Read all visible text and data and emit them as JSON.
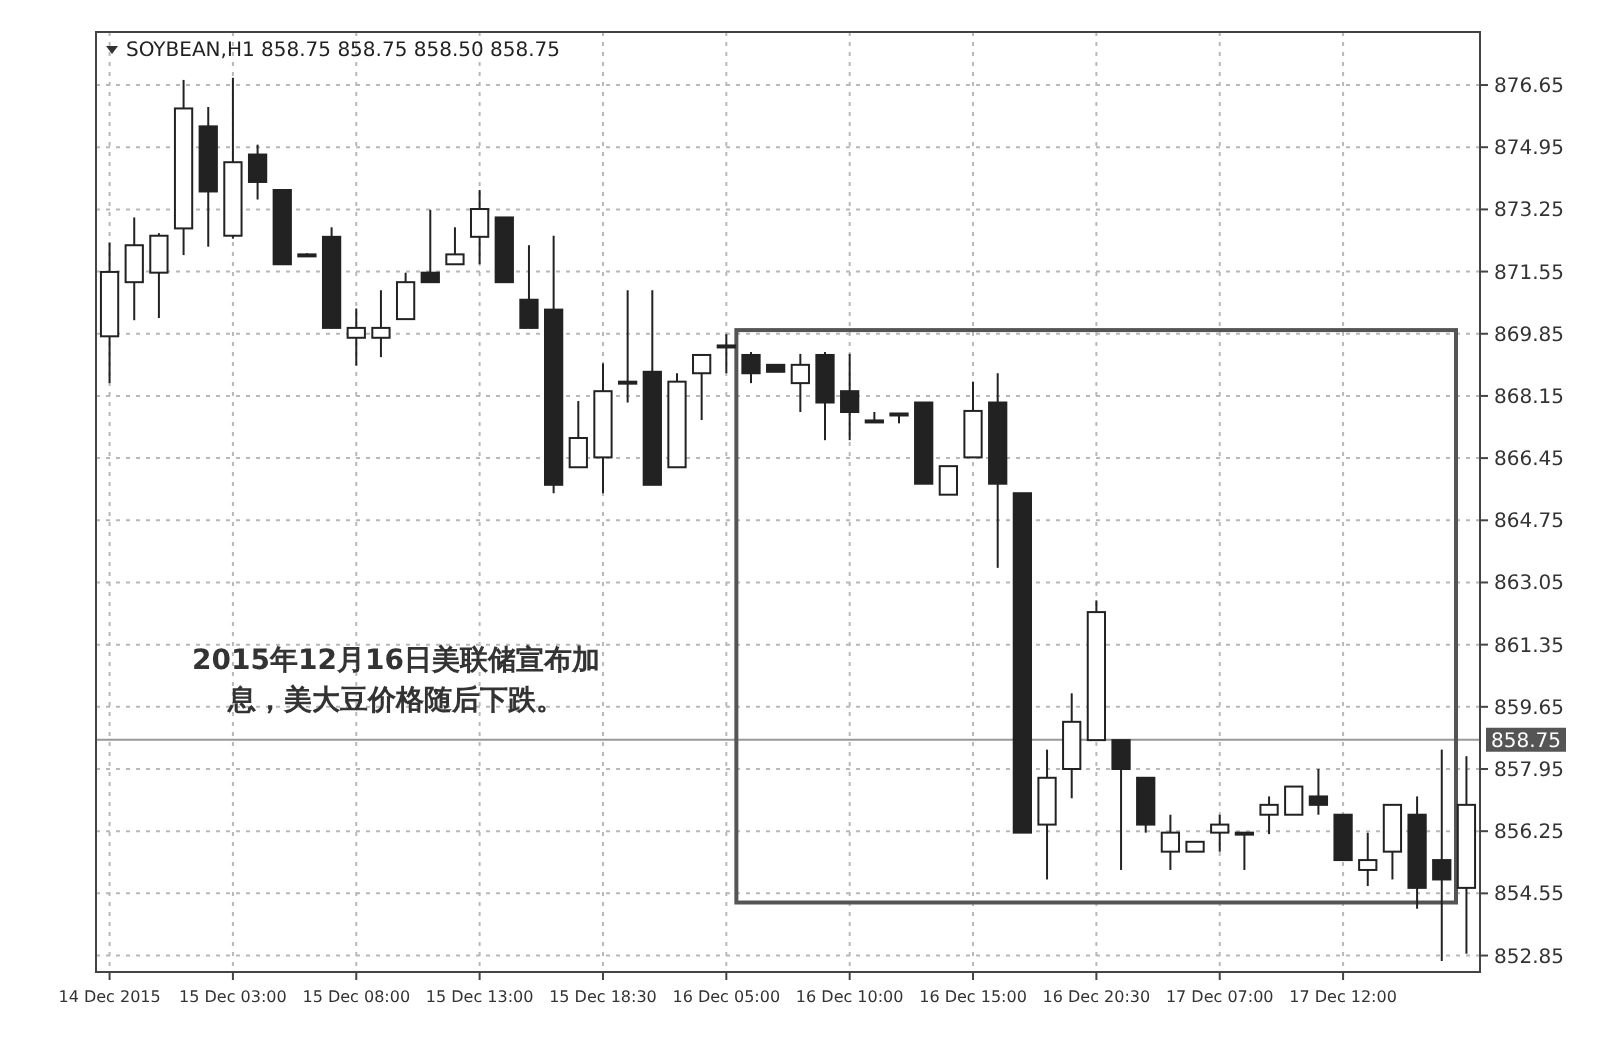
{
  "chart_data": {
    "type": "candlestick",
    "title": "SOYBEAN,H1 858.75 858.75 858.50 858.75",
    "color": "#222222",
    "categories": [
      "14 Dec 2015",
      null,
      null,
      null,
      null,
      "15 Dec 03:00",
      null,
      null,
      null,
      null,
      "15 Dec 08:00",
      null,
      null,
      null,
      null,
      "15 Dec 13:00",
      null,
      null,
      null,
      null,
      "15 Dec 18:30",
      null,
      null,
      null,
      null,
      "16 Dec 05:00",
      null,
      null,
      null,
      null,
      "16 Dec 10:00",
      null,
      null,
      null,
      null,
      "16 Dec 15:00",
      null,
      null,
      null,
      null,
      "16 Dec 20:30",
      null,
      null,
      null,
      null,
      "17 Dec 07:00",
      null,
      null,
      null,
      null,
      "17 Dec 12:00",
      null,
      null,
      null,
      null,
      null
    ],
    "ohlc": [
      [
        869.78,
        872.34,
        868.5,
        871.54
      ],
      [
        871.26,
        873.03,
        870.22,
        872.27
      ],
      [
        871.52,
        872.6,
        870.28,
        872.53
      ],
      [
        872.73,
        876.79,
        872.0,
        876.01
      ],
      [
        875.52,
        876.05,
        872.23,
        873.74
      ],
      [
        872.53,
        876.85,
        872.45,
        874.54
      ],
      [
        874.75,
        875.02,
        873.52,
        874.0
      ],
      [
        873.78,
        873.78,
        871.75,
        871.75
      ],
      [
        872.02,
        872.05,
        872.0,
        872.02
      ],
      [
        872.5,
        872.76,
        870.01,
        870.01
      ],
      [
        869.74,
        870.54,
        868.98,
        870.01
      ],
      [
        869.74,
        871.04,
        869.21,
        870.01
      ],
      [
        870.25,
        871.52,
        870.25,
        871.26
      ],
      [
        871.52,
        873.24,
        871.26,
        871.26
      ],
      [
        871.75,
        872.76,
        871.75,
        872.02
      ],
      [
        872.5,
        873.78,
        871.75,
        873.26
      ],
      [
        873.03,
        873.03,
        871.26,
        871.26
      ],
      [
        870.78,
        872.27,
        870.01,
        870.01
      ],
      [
        870.51,
        872.53,
        865.49,
        865.72
      ],
      [
        866.2,
        868.01,
        866.2,
        867.0
      ],
      [
        866.47,
        869.04,
        865.49,
        868.28
      ],
      [
        868.54,
        871.04,
        867.97,
        868.54
      ],
      [
        868.81,
        871.04,
        865.72,
        865.72
      ],
      [
        866.2,
        868.77,
        866.2,
        868.54
      ],
      [
        868.77,
        869.27,
        867.49,
        869.27
      ],
      [
        869.53,
        869.84,
        868.77,
        869.53
      ],
      [
        869.27,
        869.35,
        868.5,
        868.77
      ],
      [
        869.0,
        869.0,
        868.81,
        868.81
      ],
      [
        868.5,
        869.3,
        867.71,
        869.0
      ],
      [
        869.27,
        869.35,
        866.94,
        867.97
      ],
      [
        868.28,
        869.3,
        866.94,
        867.71
      ],
      [
        867.48,
        867.71,
        867.48,
        867.48
      ],
      [
        867.67,
        867.67,
        867.4,
        867.67
      ],
      [
        867.97,
        867.97,
        865.75,
        865.75
      ],
      [
        865.45,
        866.23,
        865.45,
        866.23
      ],
      [
        866.47,
        868.54,
        866.47,
        867.74
      ],
      [
        867.97,
        868.77,
        863.45,
        865.75
      ],
      [
        865.49,
        865.49,
        856.21,
        856.21
      ],
      [
        856.43,
        858.48,
        854.93,
        857.71
      ],
      [
        857.95,
        860.02,
        857.15,
        859.24
      ],
      [
        858.74,
        862.56,
        858.74,
        862.24
      ],
      [
        858.74,
        858.74,
        855.19,
        857.95
      ],
      [
        857.71,
        857.71,
        856.21,
        856.43
      ],
      [
        855.69,
        856.7,
        855.19,
        856.21
      ],
      [
        855.69,
        855.96,
        855.69,
        855.96
      ],
      [
        856.21,
        856.7,
        855.69,
        856.43
      ],
      [
        856.21,
        856.21,
        855.19,
        856.21
      ],
      [
        856.7,
        857.2,
        856.17,
        856.97
      ],
      [
        856.7,
        857.47,
        856.7,
        857.47
      ],
      [
        857.2,
        857.95,
        856.7,
        856.97
      ],
      [
        856.7,
        856.7,
        855.46,
        855.46
      ],
      [
        855.19,
        856.21,
        854.75,
        855.46
      ],
      [
        855.69,
        856.97,
        854.93,
        856.97
      ],
      [
        856.7,
        857.2,
        854.13,
        854.7
      ],
      [
        855.46,
        858.48,
        852.7,
        854.93
      ],
      [
        854.7,
        858.3,
        852.9,
        856.97
      ]
    ],
    "ylim": [
      852.4,
      878.1
    ],
    "yticks": [
      876.65,
      874.95,
      873.25,
      871.55,
      869.85,
      868.15,
      866.45,
      864.75,
      863.05,
      861.35,
      859.65,
      857.95,
      856.25,
      854.55,
      852.85
    ],
    "grid": true,
    "ref_lines": [
      {
        "axis": "y",
        "value": 858.75,
        "label": "858.75",
        "color": "#999999"
      }
    ],
    "annotations": [
      "2015年12月16日美联储宣布加息，美大豆价格随后下跌。"
    ]
  }
}
